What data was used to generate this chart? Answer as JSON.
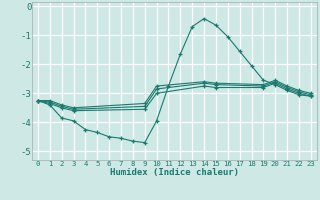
{
  "title": "",
  "xlabel": "Humidex (Indice chaleur)",
  "ylabel": "",
  "bg_color": "#cde8e5",
  "line_color": "#1a7a6e",
  "grid_color": "#b0d4d0",
  "xlim": [
    -0.5,
    23.5
  ],
  "ylim": [
    -5.3,
    0.15
  ],
  "yticks": [
    0,
    -1,
    -2,
    -3,
    -4,
    -5
  ],
  "xticks": [
    0,
    1,
    2,
    3,
    4,
    5,
    6,
    7,
    8,
    9,
    10,
    11,
    12,
    13,
    14,
    15,
    16,
    17,
    18,
    19,
    20,
    21,
    22,
    23
  ],
  "lines": [
    {
      "x": [
        0,
        1,
        2,
        3,
        4,
        5,
        6,
        7,
        8,
        9,
        10,
        11,
        12,
        13,
        14,
        15,
        16,
        17,
        18,
        19,
        20,
        21,
        22,
        23
      ],
      "y": [
        -3.25,
        -3.4,
        -3.85,
        -3.95,
        -4.25,
        -4.35,
        -4.5,
        -4.55,
        -4.65,
        -4.7,
        -3.95,
        -2.75,
        -1.65,
        -0.7,
        -0.42,
        -0.65,
        -1.05,
        -1.55,
        -2.05,
        -2.55,
        -2.7,
        -2.9,
        -3.05,
        -3.1
      ]
    },
    {
      "x": [
        0,
        1,
        2,
        3,
        9,
        10,
        14,
        15,
        19,
        20,
        21,
        22,
        23
      ],
      "y": [
        -3.25,
        -3.35,
        -3.5,
        -3.6,
        -3.55,
        -3.0,
        -2.75,
        -2.8,
        -2.8,
        -2.65,
        -2.85,
        -3.0,
        -3.1
      ]
    },
    {
      "x": [
        0,
        1,
        2,
        3,
        9,
        10,
        14,
        15,
        19,
        20,
        21,
        22,
        23
      ],
      "y": [
        -3.25,
        -3.3,
        -3.45,
        -3.55,
        -3.45,
        -2.85,
        -2.65,
        -2.7,
        -2.75,
        -2.6,
        -2.8,
        -2.95,
        -3.05
      ]
    },
    {
      "x": [
        0,
        1,
        2,
        3,
        9,
        10,
        14,
        15,
        19,
        20,
        21,
        22,
        23
      ],
      "y": [
        -3.25,
        -3.25,
        -3.4,
        -3.5,
        -3.35,
        -2.75,
        -2.6,
        -2.65,
        -2.7,
        -2.55,
        -2.75,
        -2.9,
        -3.0
      ]
    }
  ]
}
